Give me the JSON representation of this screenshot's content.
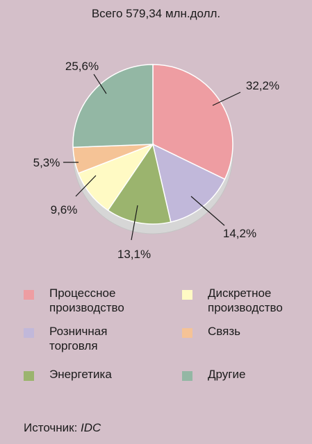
{
  "title": "Всего 579,34 млн.долл.",
  "source": {
    "label": "Источник:",
    "value": "IDC"
  },
  "chart_data": {
    "type": "pie",
    "total_label": "Всего 579,34 млн.долл.",
    "slices": [
      {
        "label": "Процессное производство",
        "value": 32.2,
        "value_label": "32,2%",
        "color": "#ee9da2"
      },
      {
        "label": "Розничная торговля",
        "value": 14.2,
        "value_label": "14,2%",
        "color": "#c1b8da"
      },
      {
        "label": "Энергетика",
        "value": 13.1,
        "value_label": "13,1%",
        "color": "#9bb46e"
      },
      {
        "label": "Дискретное производство",
        "value": 9.6,
        "value_label": "9,6%",
        "color": "#fffac4"
      },
      {
        "label": "Связь",
        "value": 5.3,
        "value_label": "5,3%",
        "color": "#f5c396"
      },
      {
        "label": "Другие",
        "value": 25.6,
        "value_label": "25,6%",
        "color": "#93b7a4"
      }
    ],
    "legend": [
      {
        "text": "Процессное\nпроизводство",
        "color": "#ee9da2"
      },
      {
        "text": "Дискретное\nпроизводство",
        "color": "#fffac4"
      },
      {
        "text": "Розничная\nторговля",
        "color": "#c1b8da"
      },
      {
        "text": "Связь",
        "color": "#f5c396"
      },
      {
        "text": "Энергетика",
        "color": "#9bb46e"
      },
      {
        "text": "Другие",
        "color": "#93b7a4"
      }
    ]
  }
}
